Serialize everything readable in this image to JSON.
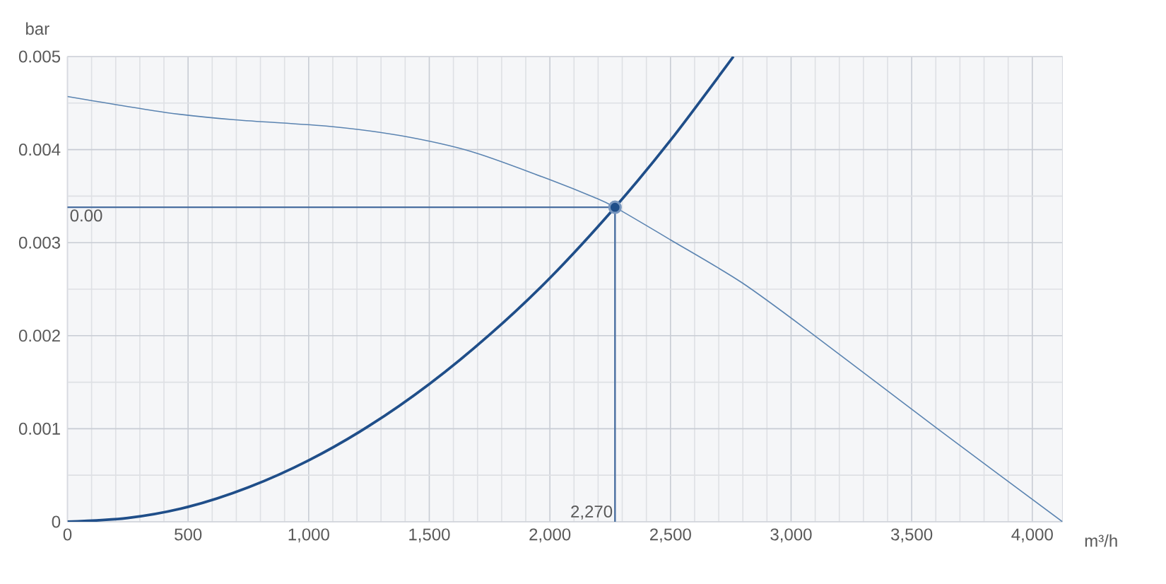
{
  "chart_data": {
    "type": "line",
    "xlabel": "m³/h",
    "ylabel": "bar",
    "xlim": [
      0,
      4125
    ],
    "ylim": [
      0,
      0.005
    ],
    "xticks": [
      0,
      500,
      {
        "value": 1000,
        "label": "1,000"
      },
      {
        "value": 1500,
        "label": "1,500"
      },
      {
        "value": 2000,
        "label": "2,000"
      },
      {
        "value": 2500,
        "label": "2,500"
      },
      {
        "value": 3000,
        "label": "3,000"
      },
      {
        "value": 3500,
        "label": "3,500"
      },
      {
        "value": 4000,
        "label": "4,000"
      }
    ],
    "yticks": [
      0,
      0.001,
      0.002,
      0.003,
      0.004,
      0.005
    ],
    "grid": true,
    "series": [
      {
        "color": "#5b84b1",
        "x": [
          0,
          404,
          697,
          1087,
          1380,
          1673,
          1966,
          2181,
          2270,
          2500,
          2796,
          3098,
          3607,
          4125
        ],
        "values": [
          0.00457,
          0.0044,
          0.00432,
          0.00425,
          0.00415,
          0.00398,
          0.00371,
          0.00349,
          0.00338,
          0.00303,
          0.00257,
          0.002,
          0.001,
          0
        ]
      },
      {
        "color": "#1f4e89",
        "x": [
          0,
          250,
          500,
          750,
          1000,
          1250,
          1500,
          1750,
          2000,
          2270,
          2500,
          2761
        ],
        "values": [
          0,
          4e-05,
          0.00016,
          0.00037,
          0.00066,
          0.00103,
          0.00148,
          0.00201,
          0.00262,
          0.00338,
          0.0041,
          0.005
        ]
      },
      {
        "type": "scatter",
        "color": "#1f4e89",
        "marker": "circle",
        "x": [
          2270
        ],
        "values": [
          0.00338
        ]
      }
    ],
    "ref_lines": [
      {
        "axis": "y",
        "value": 0.00338,
        "label": "0.00",
        "color": "#4a6fa0"
      },
      {
        "axis": "x",
        "value": 2270,
        "label": "2,270",
        "color": "#4a6fa0"
      }
    ]
  }
}
